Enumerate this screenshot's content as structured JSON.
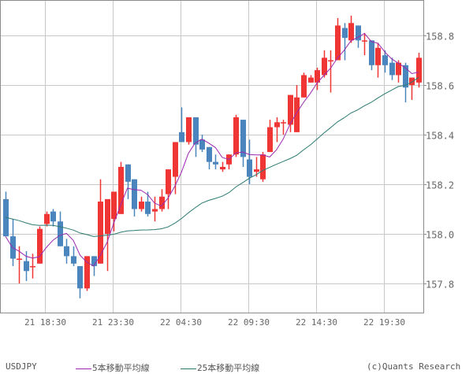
{
  "chart_data": {
    "type": "candlestick",
    "symbol": "USDJPY",
    "title": "",
    "xlabel": "",
    "ylabel": "",
    "ylim": [
      157.63,
      158.94
    ],
    "yticks": [
      157.8,
      158.0,
      158.2,
      158.4,
      158.6,
      158.8
    ],
    "ytick_labels": [
      "157.8",
      "158.0",
      "158.2",
      "158.4",
      "158.6",
      "158.8"
    ],
    "xtick_labels": [
      "21 18:30",
      "21 23:30",
      "22 04:30",
      "22 09:30",
      "22 14:30",
      "22 19:30"
    ],
    "xtick_index": [
      6,
      16,
      26,
      36,
      46,
      56
    ],
    "grid": true,
    "legend_position": "bottom",
    "colors": {
      "up": "#f03535",
      "down": "#4a86bd",
      "ma5": "#9b27af",
      "ma25": "#2a7a70",
      "grid": "#c8c8c8",
      "axis": "#8c8c8c"
    },
    "candles": [
      {
        "o": 158.14,
        "h": 158.17,
        "l": 157.99,
        "c": 157.99
      },
      {
        "o": 157.99,
        "h": 158.06,
        "l": 157.87,
        "c": 157.9
      },
      {
        "o": 157.9,
        "h": 157.95,
        "l": 157.8,
        "c": 157.9
      },
      {
        "o": 157.89,
        "h": 157.93,
        "l": 157.81,
        "c": 157.85
      },
      {
        "o": 157.87,
        "h": 157.92,
        "l": 157.82,
        "c": 157.87
      },
      {
        "o": 157.88,
        "h": 158.03,
        "l": 157.88,
        "c": 158.02
      },
      {
        "o": 158.04,
        "h": 158.09,
        "l": 158.03,
        "c": 158.08
      },
      {
        "o": 158.09,
        "h": 158.1,
        "l": 158.03,
        "c": 158.05
      },
      {
        "o": 158.05,
        "h": 158.09,
        "l": 157.96,
        "c": 157.95
      },
      {
        "o": 157.95,
        "h": 157.98,
        "l": 157.88,
        "c": 157.91
      },
      {
        "o": 157.91,
        "h": 157.95,
        "l": 157.87,
        "c": 157.88
      },
      {
        "o": 157.87,
        "h": 157.85,
        "l": 157.74,
        "c": 157.78
      },
      {
        "o": 157.78,
        "h": 157.91,
        "l": 157.77,
        "c": 157.91
      },
      {
        "o": 157.91,
        "h": 157.91,
        "l": 157.83,
        "c": 157.87
      },
      {
        "o": 157.88,
        "h": 158.22,
        "l": 157.88,
        "c": 158.13
      },
      {
        "o": 158.0,
        "h": 158.1,
        "l": 157.85,
        "c": 158.14
      },
      {
        "o": 158.06,
        "h": 158.17,
        "l": 158.01,
        "c": 158.17
      },
      {
        "o": 158.08,
        "h": 158.29,
        "l": 158.08,
        "c": 158.27
      },
      {
        "o": 158.28,
        "h": 158.28,
        "l": 158.14,
        "c": 158.21
      },
      {
        "o": 158.22,
        "h": 158.18,
        "l": 158.07,
        "c": 158.1
      },
      {
        "o": 158.1,
        "h": 158.15,
        "l": 158.09,
        "c": 158.13
      },
      {
        "o": 158.13,
        "h": 158.17,
        "l": 158.07,
        "c": 158.08
      },
      {
        "o": 158.09,
        "h": 158.15,
        "l": 158.05,
        "c": 158.1
      },
      {
        "o": 158.1,
        "h": 158.18,
        "l": 158.09,
        "c": 158.15
      },
      {
        "o": 158.16,
        "h": 158.26,
        "l": 158.1,
        "c": 158.26
      },
      {
        "o": 158.23,
        "h": 158.28,
        "l": 158.16,
        "c": 158.37
      },
      {
        "o": 158.41,
        "h": 158.51,
        "l": 158.37,
        "c": 158.37
      },
      {
        "o": 158.37,
        "h": 158.47,
        "l": 158.36,
        "c": 158.47
      },
      {
        "o": 158.47,
        "h": 158.47,
        "l": 158.31,
        "c": 158.36
      },
      {
        "o": 158.38,
        "h": 158.4,
        "l": 158.33,
        "c": 158.34
      },
      {
        "o": 158.35,
        "h": 158.35,
        "l": 158.26,
        "c": 158.29
      },
      {
        "o": 158.29,
        "h": 158.32,
        "l": 158.26,
        "c": 158.28
      },
      {
        "o": 158.26,
        "h": 158.29,
        "l": 158.25,
        "c": 158.27
      },
      {
        "o": 158.28,
        "h": 158.32,
        "l": 158.26,
        "c": 158.32
      },
      {
        "o": 158.32,
        "h": 158.48,
        "l": 158.31,
        "c": 158.47
      },
      {
        "o": 158.46,
        "h": 158.46,
        "l": 158.27,
        "c": 158.31
      },
      {
        "o": 158.3,
        "h": 158.38,
        "l": 158.2,
        "c": 158.23
      },
      {
        "o": 158.25,
        "h": 158.31,
        "l": 158.23,
        "c": 158.26
      },
      {
        "o": 158.22,
        "h": 158.33,
        "l": 158.21,
        "c": 158.32
      },
      {
        "o": 158.33,
        "h": 158.46,
        "l": 158.33,
        "c": 158.43
      },
      {
        "o": 158.43,
        "h": 158.47,
        "l": 158.37,
        "c": 158.45
      },
      {
        "o": 158.45,
        "h": 158.46,
        "l": 158.4,
        "c": 158.45
      },
      {
        "o": 158.44,
        "h": 158.49,
        "l": 158.41,
        "c": 158.56
      },
      {
        "o": 158.41,
        "h": 158.6,
        "l": 158.41,
        "c": 158.55
      },
      {
        "o": 158.55,
        "h": 158.65,
        "l": 158.55,
        "c": 158.64
      },
      {
        "o": 158.61,
        "h": 158.64,
        "l": 158.61,
        "c": 158.63
      },
      {
        "o": 158.61,
        "h": 158.67,
        "l": 158.58,
        "c": 158.66
      },
      {
        "o": 158.64,
        "h": 158.74,
        "l": 158.63,
        "c": 158.71
      },
      {
        "o": 158.7,
        "h": 158.74,
        "l": 158.57,
        "c": 158.7
      },
      {
        "o": 158.7,
        "h": 158.87,
        "l": 158.74,
        "c": 158.84
      },
      {
        "o": 158.83,
        "h": 158.85,
        "l": 158.7,
        "c": 158.79
      },
      {
        "o": 158.78,
        "h": 158.88,
        "l": 158.77,
        "c": 158.85
      },
      {
        "o": 158.84,
        "h": 158.84,
        "l": 158.75,
        "c": 158.78
      },
      {
        "o": 158.78,
        "h": 158.81,
        "l": 158.72,
        "c": 158.78
      },
      {
        "o": 158.78,
        "h": 158.78,
        "l": 158.66,
        "c": 158.68
      },
      {
        "o": 158.68,
        "h": 158.77,
        "l": 158.63,
        "c": 158.75
      },
      {
        "o": 158.72,
        "h": 158.74,
        "l": 158.65,
        "c": 158.68
      },
      {
        "o": 158.69,
        "h": 158.71,
        "l": 158.62,
        "c": 158.64
      },
      {
        "o": 158.64,
        "h": 158.7,
        "l": 158.61,
        "c": 158.69
      },
      {
        "o": 158.68,
        "h": 158.69,
        "l": 158.53,
        "c": 158.59
      },
      {
        "o": 158.6,
        "h": 158.61,
        "l": 158.54,
        "c": 158.63
      },
      {
        "o": 158.61,
        "h": 158.73,
        "l": 158.59,
        "c": 158.71
      }
    ],
    "ma5_label": "5本移動平均線",
    "ma25_label": "25本移動平均線"
  },
  "legend": {
    "symbol": "USDJPY",
    "ma5": "5本移動平均線",
    "ma25": "25本移動平均線",
    "copyright": "(c)Quants Research"
  }
}
